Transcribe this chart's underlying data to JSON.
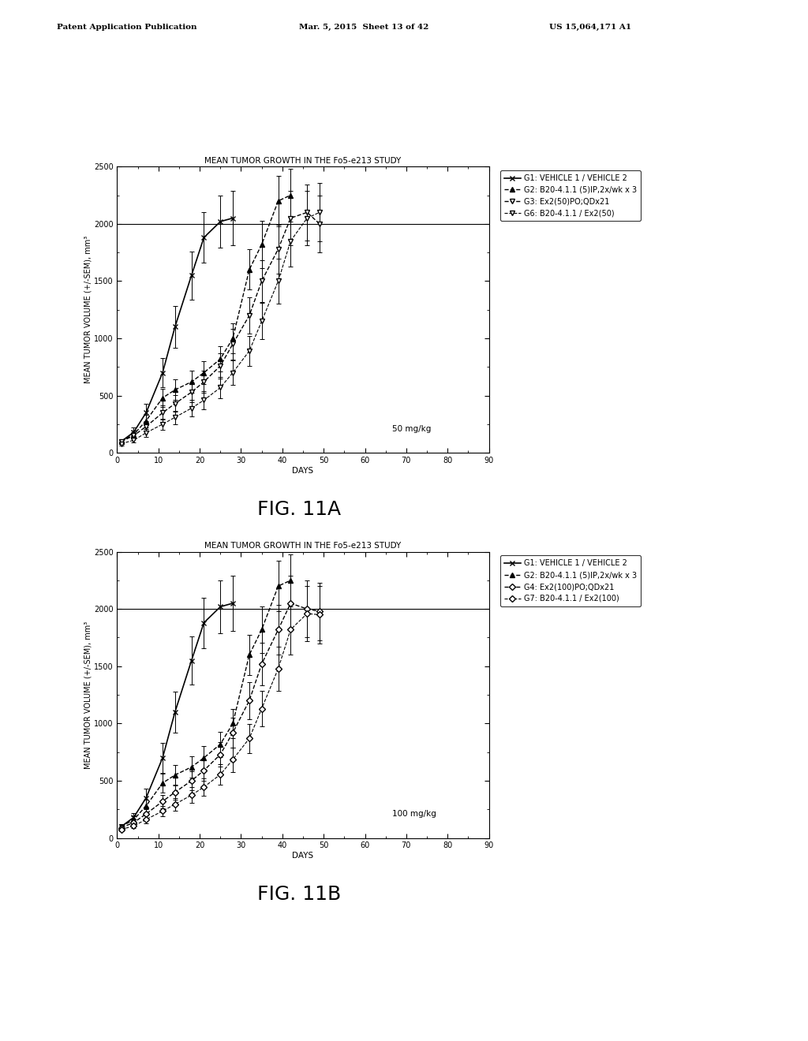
{
  "title": "MEAN TUMOR GROWTH IN THE Fo5-e213 STUDY",
  "xlabel": "DAYS",
  "ylabel": "MEAN TUMOR VOLUME (+/-SEM), mm³",
  "xlim": [
    0,
    90
  ],
  "ylim": [
    0,
    2500
  ],
  "yticks": [
    0,
    500,
    1000,
    1500,
    2000,
    2500
  ],
  "xticks": [
    0,
    10,
    20,
    30,
    40,
    50,
    60,
    70,
    80,
    90
  ],
  "hline_y": 2000,
  "annotation_A": "50 mg/kg",
  "annotation_B": "100 mg/kg",
  "fig_label_A": "FIG. 11A",
  "fig_label_B": "FIG. 11B",
  "header_left": "Patent Application Publication",
  "header_center": "Mar. 5, 2015  Sheet 13 of 42",
  "header_right": "US 15,064,171 A1",
  "G1_label": "G1: VEHICLE 1 / VEHICLE 2",
  "G2_label": "G2: B20-4.1.1 (5)IP,2x/wk x 3",
  "G3_label": "G3: Ex2(50)PO;QDx21",
  "G6_label": "G6: B20-4.1.1 / Ex2(50)",
  "G4_label": "G4: Ex2(100)PO;QDx21",
  "G7_label": "G7: B20-4.1.1 / Ex2(100)",
  "G1A_x": [
    1,
    4,
    7,
    11,
    14,
    18,
    21,
    25,
    28
  ],
  "G1A_y": [
    100,
    180,
    350,
    700,
    1100,
    1550,
    1880,
    2020,
    2050
  ],
  "G1A_e": [
    20,
    40,
    80,
    130,
    180,
    210,
    220,
    230,
    240
  ],
  "G2A_x": [
    1,
    4,
    7,
    11,
    14,
    18,
    21,
    25,
    28,
    32,
    35,
    39,
    42
  ],
  "G2A_y": [
    100,
    160,
    280,
    480,
    550,
    620,
    700,
    820,
    1000,
    1600,
    1820,
    2200,
    2250
  ],
  "G2A_e": [
    18,
    32,
    55,
    80,
    90,
    95,
    100,
    110,
    130,
    175,
    205,
    220,
    230
  ],
  "G3A_x": [
    1,
    4,
    7,
    11,
    14,
    18,
    21,
    25,
    28,
    32,
    35,
    39,
    42,
    46,
    49
  ],
  "G3A_y": [
    100,
    150,
    230,
    350,
    430,
    530,
    620,
    760,
    950,
    1200,
    1500,
    1780,
    2050,
    2100,
    2000
  ],
  "G3A_e": [
    18,
    28,
    45,
    62,
    72,
    85,
    95,
    110,
    135,
    160,
    185,
    215,
    235,
    245,
    250
  ],
  "G6A_x": [
    1,
    4,
    7,
    11,
    14,
    18,
    21,
    25,
    28,
    32,
    35,
    39,
    42,
    46,
    49
  ],
  "G6A_y": [
    80,
    110,
    175,
    250,
    310,
    390,
    460,
    570,
    700,
    890,
    1150,
    1500,
    1850,
    2050,
    2100
  ],
  "G6A_e": [
    15,
    22,
    35,
    48,
    58,
    72,
    82,
    95,
    108,
    130,
    160,
    195,
    220,
    240,
    255
  ],
  "G1B_x": [
    1,
    4,
    7,
    11,
    14,
    18,
    21,
    25,
    28
  ],
  "G1B_y": [
    100,
    180,
    350,
    700,
    1100,
    1550,
    1880,
    2020,
    2050
  ],
  "G1B_e": [
    20,
    40,
    80,
    130,
    180,
    210,
    220,
    230,
    240
  ],
  "G2B_x": [
    1,
    4,
    7,
    11,
    14,
    18,
    21,
    25,
    28,
    32,
    35,
    39,
    42
  ],
  "G2B_y": [
    100,
    160,
    280,
    480,
    550,
    620,
    700,
    820,
    1000,
    1600,
    1820,
    2200,
    2250
  ],
  "G2B_e": [
    18,
    32,
    55,
    80,
    90,
    95,
    100,
    110,
    130,
    175,
    205,
    220,
    230
  ],
  "G4B_x": [
    1,
    4,
    7,
    11,
    14,
    18,
    21,
    25,
    28,
    32,
    35,
    39,
    42,
    46,
    49
  ],
  "G4B_y": [
    90,
    135,
    210,
    320,
    400,
    500,
    590,
    730,
    920,
    1200,
    1520,
    1820,
    2050,
    2000,
    1980
  ],
  "G4B_e": [
    16,
    26,
    42,
    58,
    68,
    82,
    92,
    108,
    132,
    160,
    188,
    218,
    238,
    248,
    252
  ],
  "G7B_x": [
    1,
    4,
    7,
    11,
    14,
    18,
    21,
    25,
    28,
    32,
    35,
    39,
    42,
    46,
    49
  ],
  "G7B_y": [
    75,
    105,
    162,
    235,
    295,
    375,
    445,
    555,
    685,
    870,
    1130,
    1480,
    1820,
    1960,
    1950
  ],
  "G7B_e": [
    14,
    20,
    32,
    45,
    55,
    68,
    78,
    92,
    106,
    128,
    158,
    192,
    218,
    238,
    252
  ]
}
